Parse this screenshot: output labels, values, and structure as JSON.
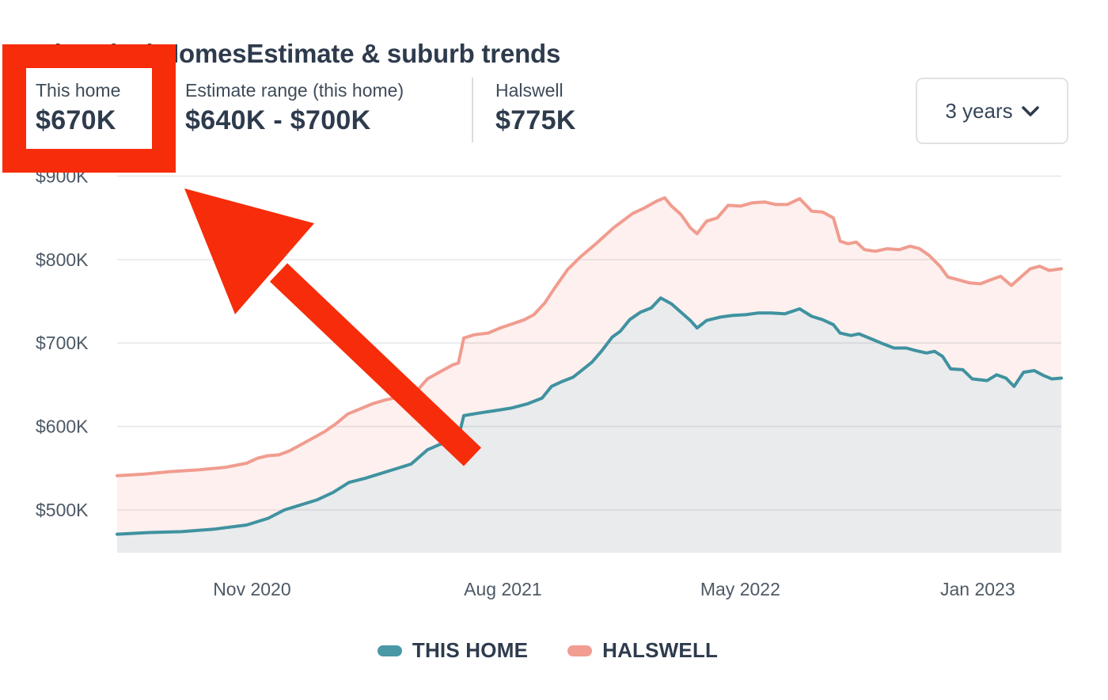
{
  "page": {
    "title": "Historical HomesEstimate & suburb trends"
  },
  "stats": [
    {
      "label": "This home",
      "value": "$670K",
      "highlighted": true
    },
    {
      "label": "Estimate range (this home)",
      "value": "$640K - $700K",
      "highlighted": false
    },
    {
      "label": "Halswell",
      "value": "$775K",
      "highlighted": false
    }
  ],
  "controls": {
    "range_dropdown": {
      "value": "3 years",
      "icon": "chevron-down-icon"
    }
  },
  "annotation": {
    "type": "highlight-box-with-arrow",
    "target": "This home $670K stat",
    "color": "#f72c0a"
  },
  "colors": {
    "text_dark": "#2e3b4d",
    "text_label": "#3e4b59",
    "axis_text": "#4d5966",
    "gridline": "rgba(90,100,110,0.14)",
    "border": "#dfe2e5",
    "teal_line": "#4092a0",
    "teal_fill": "#e9ebed",
    "salmon_line": "#f09c8f",
    "salmon_fill": "#fdf0ee",
    "accent_red": "#f72c0a"
  },
  "chart_data": {
    "type": "area",
    "title": "Historical HomesEstimate & suburb trends",
    "x_unit": "months since start (≈ May 2020 to Apr 2023)",
    "x_range": [
      0,
      35
    ],
    "ylim": [
      445,
      905
    ],
    "grid": true,
    "legend_position": "bottom",
    "y_ticks": [
      {
        "v": 500,
        "label": "$500K"
      },
      {
        "v": 600,
        "label": "$600K"
      },
      {
        "v": 700,
        "label": "$700K"
      },
      {
        "v": 800,
        "label": "$800K"
      },
      {
        "v": 900,
        "label": "$900K"
      }
    ],
    "x_ticks": [
      {
        "t": 5.0,
        "label": "Nov 2020"
      },
      {
        "t": 14.3,
        "label": "Aug 2021"
      },
      {
        "t": 23.1,
        "label": "May 2022"
      },
      {
        "t": 31.9,
        "label": "Jan 2023"
      }
    ],
    "legend": [
      {
        "name": "THIS HOME",
        "color": "#4a97a5"
      },
      {
        "name": "HALSWELL",
        "color": "#f19d91"
      }
    ],
    "series": [
      {
        "name": "HALSWELL",
        "unit": "$K NZD",
        "line_color": "#f09c8f",
        "fill_color": "#fdf0ee",
        "points": [
          [
            0,
            541
          ],
          [
            1,
            543
          ],
          [
            2,
            546
          ],
          [
            3,
            548
          ],
          [
            4,
            551
          ],
          [
            4.8,
            556
          ],
          [
            5.2,
            562
          ],
          [
            5.6,
            565
          ],
          [
            6.0,
            566
          ],
          [
            6.4,
            571
          ],
          [
            6.8,
            578
          ],
          [
            7.25,
            586
          ],
          [
            7.7,
            594
          ],
          [
            8.1,
            603
          ],
          [
            8.55,
            615
          ],
          [
            9.0,
            621
          ],
          [
            9.45,
            627
          ],
          [
            9.95,
            632
          ],
          [
            10.4,
            635
          ],
          [
            10.8,
            639
          ],
          [
            11.15,
            644
          ],
          [
            11.5,
            657
          ],
          [
            12.0,
            666
          ],
          [
            12.45,
            674
          ],
          [
            12.65,
            676
          ],
          [
            12.85,
            706
          ],
          [
            13.25,
            710
          ],
          [
            13.75,
            712
          ],
          [
            14.2,
            718
          ],
          [
            14.65,
            723
          ],
          [
            15.1,
            728
          ],
          [
            15.45,
            734
          ],
          [
            15.85,
            748
          ],
          [
            16.2,
            765
          ],
          [
            16.7,
            788
          ],
          [
            17.2,
            804
          ],
          [
            17.75,
            819
          ],
          [
            18.4,
            838
          ],
          [
            19.1,
            855
          ],
          [
            19.55,
            862
          ],
          [
            20.0,
            870
          ],
          [
            20.3,
            874
          ],
          [
            20.55,
            864
          ],
          [
            20.9,
            854
          ],
          [
            21.25,
            838
          ],
          [
            21.5,
            831
          ],
          [
            21.85,
            846
          ],
          [
            22.25,
            850
          ],
          [
            22.65,
            865
          ],
          [
            23.1,
            864
          ],
          [
            23.55,
            868
          ],
          [
            24.0,
            869
          ],
          [
            24.4,
            866
          ],
          [
            24.85,
            866
          ],
          [
            25.3,
            873
          ],
          [
            25.75,
            858
          ],
          [
            26.15,
            857
          ],
          [
            26.55,
            850
          ],
          [
            26.8,
            822
          ],
          [
            27.1,
            819
          ],
          [
            27.4,
            821
          ],
          [
            27.7,
            812
          ],
          [
            28.1,
            810
          ],
          [
            28.55,
            813
          ],
          [
            29.0,
            812
          ],
          [
            29.4,
            816
          ],
          [
            29.75,
            813
          ],
          [
            30.1,
            805
          ],
          [
            30.5,
            792
          ],
          [
            30.8,
            779
          ],
          [
            31.15,
            776
          ],
          [
            31.6,
            772
          ],
          [
            32.0,
            771
          ],
          [
            32.4,
            776
          ],
          [
            32.75,
            780
          ],
          [
            33.15,
            769
          ],
          [
            33.5,
            779
          ],
          [
            33.85,
            789
          ],
          [
            34.2,
            792
          ],
          [
            34.55,
            787
          ],
          [
            35,
            789
          ]
        ]
      },
      {
        "name": "THIS HOME",
        "unit": "$K NZD",
        "line_color": "#4092a0",
        "fill_color": "#e9ebed",
        "points": [
          [
            0,
            471
          ],
          [
            1.2,
            473
          ],
          [
            2.4,
            474
          ],
          [
            3.6,
            477
          ],
          [
            4.8,
            482
          ],
          [
            5.6,
            490
          ],
          [
            6.2,
            500
          ],
          [
            6.8,
            506
          ],
          [
            7.4,
            512
          ],
          [
            8.0,
            521
          ],
          [
            8.6,
            533
          ],
          [
            9.2,
            538
          ],
          [
            9.7,
            543
          ],
          [
            10.3,
            549
          ],
          [
            10.9,
            555
          ],
          [
            11.5,
            572
          ],
          [
            12.0,
            579
          ],
          [
            12.6,
            580
          ],
          [
            12.85,
            613
          ],
          [
            13.4,
            616
          ],
          [
            14.0,
            619
          ],
          [
            14.6,
            622
          ],
          [
            15.2,
            627
          ],
          [
            15.75,
            634
          ],
          [
            16.1,
            648
          ],
          [
            16.5,
            654
          ],
          [
            16.9,
            659
          ],
          [
            17.25,
            668
          ],
          [
            17.6,
            677
          ],
          [
            17.95,
            690
          ],
          [
            18.35,
            707
          ],
          [
            18.65,
            714
          ],
          [
            19.0,
            728
          ],
          [
            19.4,
            737
          ],
          [
            19.8,
            742
          ],
          [
            20.15,
            754
          ],
          [
            20.55,
            747
          ],
          [
            20.9,
            737
          ],
          [
            21.25,
            727
          ],
          [
            21.5,
            718
          ],
          [
            21.85,
            727
          ],
          [
            22.35,
            731
          ],
          [
            22.8,
            733
          ],
          [
            23.3,
            734
          ],
          [
            23.75,
            736
          ],
          [
            24.25,
            736
          ],
          [
            24.75,
            735
          ],
          [
            25.3,
            741
          ],
          [
            25.75,
            732
          ],
          [
            26.15,
            728
          ],
          [
            26.55,
            722
          ],
          [
            26.8,
            712
          ],
          [
            27.2,
            709
          ],
          [
            27.5,
            711
          ],
          [
            27.95,
            705
          ],
          [
            28.4,
            699
          ],
          [
            28.8,
            694
          ],
          [
            29.25,
            694
          ],
          [
            29.6,
            691
          ],
          [
            30.0,
            688
          ],
          [
            30.3,
            690
          ],
          [
            30.6,
            684
          ],
          [
            30.9,
            669
          ],
          [
            31.35,
            668
          ],
          [
            31.7,
            657
          ],
          [
            32.25,
            655
          ],
          [
            32.6,
            662
          ],
          [
            32.95,
            658
          ],
          [
            33.25,
            648
          ],
          [
            33.6,
            665
          ],
          [
            34.0,
            667
          ],
          [
            34.35,
            661
          ],
          [
            34.65,
            657
          ],
          [
            35,
            658
          ]
        ]
      }
    ]
  }
}
